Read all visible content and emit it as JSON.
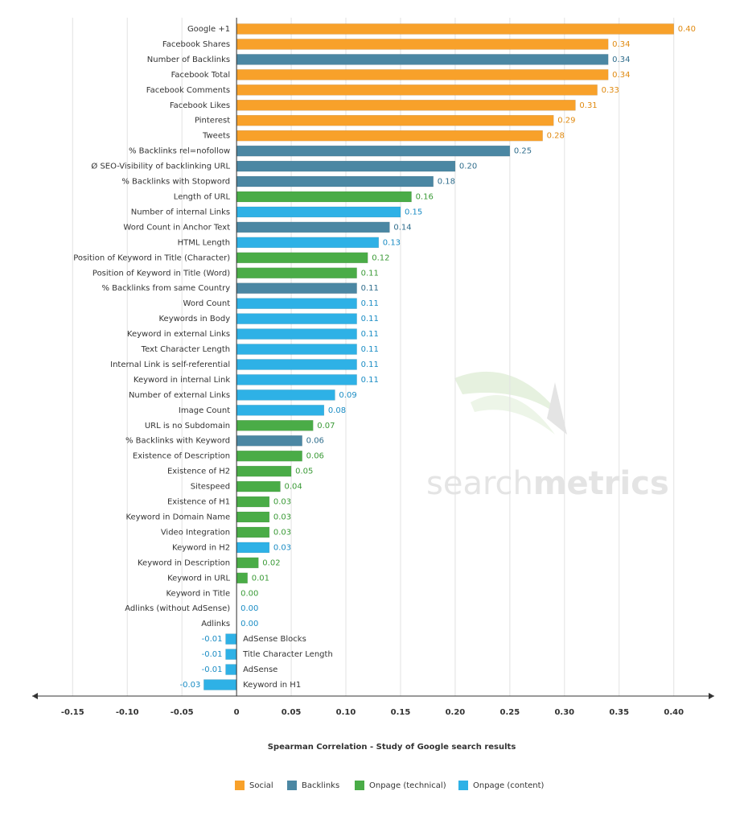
{
  "chart_data": {
    "type": "hbar",
    "title": "Spearman Correlation - Study of Google search results",
    "watermark": {
      "light": "search",
      "bold": "metrics"
    },
    "categories": [
      "Google +1",
      "Facebook Shares",
      "Number of Backlinks",
      "Facebook Total",
      "Facebook Comments",
      "Facebook Likes",
      "Pinterest",
      "Tweets",
      "% Backlinks rel=nofollow",
      "Ø SEO-Visibility of backlinking URL",
      "% Backlinks with Stopword",
      "Length of URL",
      "Number of internal Links",
      "Word Count in Anchor Text",
      "HTML Length",
      "Position of Keyword in Title (Character)",
      "Position of Keyword in Title (Word)",
      "% Backlinks from same Country",
      "Word Count",
      "Keywords in Body",
      "Keyword in external Links",
      "Text Character Length",
      "Internal Link is self-referential",
      "Keyword in internal Link",
      "Number of external Links",
      "Image Count",
      "URL is no Subdomain",
      "% Backlinks with Keyword",
      "Existence of Description",
      "Existence of H2",
      "Sitespeed",
      "Existence of H1",
      "Keyword in Domain Name",
      "Video Integration",
      "Keyword in H2",
      "Keyword in Description",
      "Keyword in URL",
      "Keyword in Title",
      "Adlinks (without AdSense)",
      "Adlinks",
      "AdSense Blocks",
      "Title Character Length",
      "AdSense",
      "Keyword in H1"
    ],
    "series": [
      {
        "name": "Social",
        "color": "#f8a12a",
        "label_color": "#e08a10",
        "values": [
          0.4,
          0.34,
          null,
          0.34,
          0.33,
          0.31,
          0.29,
          0.28,
          null,
          null,
          null,
          null,
          null,
          null,
          null,
          null,
          null,
          null,
          null,
          null,
          null,
          null,
          null,
          null,
          null,
          null,
          null,
          null,
          null,
          null,
          null,
          null,
          null,
          null,
          null,
          null,
          null,
          null,
          null,
          null,
          null,
          null,
          null,
          null
        ],
        "value_labels": [
          "0.40",
          "0.34",
          null,
          "0.34",
          "0.33",
          "0.31",
          "0.29",
          "0.28",
          null,
          null,
          null,
          null,
          null,
          null,
          null,
          null,
          null,
          null,
          null,
          null,
          null,
          null,
          null,
          null,
          null,
          null,
          null,
          null,
          null,
          null,
          null,
          null,
          null,
          null,
          null,
          null,
          null,
          null,
          null,
          null,
          null,
          null,
          null,
          null
        ]
      },
      {
        "name": "Backlinks",
        "color": "#4b87a3",
        "label_color": "#2f6d8c",
        "values": [
          null,
          null,
          0.34,
          null,
          null,
          null,
          null,
          null,
          0.25,
          0.2,
          0.18,
          null,
          null,
          0.14,
          null,
          null,
          null,
          0.11,
          null,
          null,
          null,
          null,
          null,
          null,
          null,
          null,
          null,
          0.06,
          null,
          null,
          null,
          null,
          null,
          null,
          null,
          null,
          null,
          null,
          null,
          null,
          null,
          null,
          null,
          null
        ],
        "value_labels": [
          null,
          null,
          "0.34",
          null,
          null,
          null,
          null,
          null,
          "0.25",
          "0.20",
          "0.18",
          null,
          null,
          "0.14",
          null,
          null,
          null,
          "0.11",
          null,
          null,
          null,
          null,
          null,
          null,
          null,
          null,
          null,
          "0.06",
          null,
          null,
          null,
          null,
          null,
          null,
          null,
          null,
          null,
          null,
          null,
          null,
          null,
          null,
          null,
          null
        ]
      },
      {
        "name": "Onpage (technical)",
        "color": "#4aac47",
        "label_color": "#3a9a36",
        "values": [
          null,
          null,
          null,
          null,
          null,
          null,
          null,
          null,
          null,
          null,
          null,
          0.16,
          null,
          null,
          null,
          0.12,
          0.11,
          null,
          null,
          null,
          null,
          null,
          null,
          null,
          null,
          null,
          0.07,
          null,
          0.06,
          0.05,
          0.04,
          0.03,
          0.03,
          0.03,
          null,
          0.02,
          0.01,
          0,
          null,
          null,
          null,
          null,
          null,
          null
        ],
        "value_labels": [
          null,
          null,
          null,
          null,
          null,
          null,
          null,
          null,
          null,
          null,
          null,
          "0.16",
          null,
          null,
          null,
          "0.12",
          "0.11",
          null,
          null,
          null,
          null,
          null,
          null,
          null,
          null,
          null,
          "0.07",
          null,
          "0.06",
          "0.05",
          "0.04",
          "0.03",
          "0.03",
          "0.03",
          null,
          "0.02",
          "0.01",
          "0.00",
          null,
          null,
          null,
          null,
          null,
          null
        ]
      },
      {
        "name": "Onpage (content)",
        "color": "#2eb1e6",
        "label_color": "#1a8cc4",
        "values": [
          null,
          null,
          null,
          null,
          null,
          null,
          null,
          null,
          null,
          null,
          null,
          null,
          0.15,
          null,
          0.13,
          null,
          null,
          null,
          0.11,
          0.11,
          0.11,
          0.11,
          0.11,
          0.11,
          0.09,
          0.08,
          null,
          null,
          null,
          null,
          null,
          null,
          null,
          null,
          0.03,
          null,
          null,
          null,
          0,
          0,
          -0.01,
          -0.01,
          -0.01,
          -0.03
        ],
        "value_labels": [
          null,
          null,
          null,
          null,
          null,
          null,
          null,
          null,
          null,
          null,
          null,
          null,
          "0.15",
          null,
          "0.13",
          null,
          null,
          null,
          "0.11",
          "0.11",
          "0.11",
          "0.11",
          "0.11",
          "0.11",
          "0.09",
          "0.08",
          null,
          null,
          null,
          null,
          null,
          null,
          null,
          null,
          "0.03",
          null,
          null,
          null,
          "0.00",
          "0.00",
          "-0.01",
          "-0.01",
          "-0.01",
          "-0.03"
        ]
      }
    ],
    "xlim": [
      -0.187,
      0.437
    ],
    "xticks": [
      -0.15,
      {
        "value": -0.1,
        "label": "-0.10"
      },
      -0.05,
      0,
      0.05,
      {
        "value": 0.1,
        "label": "0.10"
      },
      0.15,
      {
        "value": 0.2,
        "label": "0.20"
      },
      0.25,
      {
        "value": 0.3,
        "label": "0.30"
      },
      0.35,
      {
        "value": 0.4,
        "label": "0.40"
      }
    ],
    "grid": true,
    "legend": "bottom"
  }
}
